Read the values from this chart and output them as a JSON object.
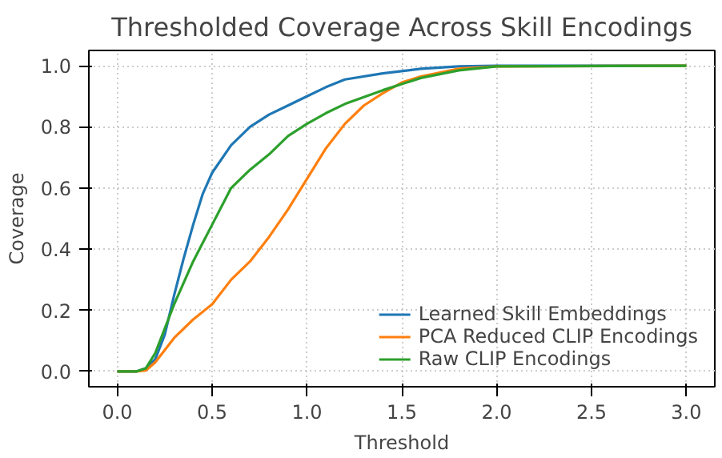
{
  "chart_data": {
    "type": "line",
    "title": "Thresholded Coverage Across Skill Encodings",
    "xlabel": "Threshold",
    "ylabel": "Coverage",
    "xlim": [
      -0.15,
      3.15
    ],
    "ylim": [
      -0.05,
      1.05
    ],
    "xticks": [
      {
        "value": 0,
        "label": "0.0"
      },
      0.5,
      {
        "value": 1,
        "label": "1.0"
      },
      1.5,
      {
        "value": 2,
        "label": "2.0"
      },
      2.5,
      {
        "value": 3,
        "label": "3.0"
      }
    ],
    "yticks": [
      {
        "value": 0,
        "label": "0.0"
      },
      0.2,
      0.4,
      0.6,
      0.8,
      {
        "value": 1,
        "label": "1.0"
      }
    ],
    "grid": true,
    "legend": "bottom right",
    "line_style": "solid",
    "series": [
      {
        "name": "Learned Skill Embeddings",
        "color": "#1f77b4",
        "x": [
          0,
          0.1,
          0.15,
          0.2,
          0.25,
          0.3,
          0.35,
          0.4,
          0.45,
          0.5,
          0.6,
          0.7,
          0.8,
          0.9,
          1.0,
          1.1,
          1.2,
          1.4,
          1.6,
          1.8,
          2.0,
          3.0
        ],
        "values": [
          0,
          0,
          0.01,
          0.04,
          0.12,
          0.25,
          0.37,
          0.48,
          0.58,
          0.65,
          0.74,
          0.8,
          0.84,
          0.87,
          0.9,
          0.93,
          0.955,
          0.975,
          0.99,
          0.998,
          1,
          1
        ]
      },
      {
        "name": "PCA Reduced CLIP Encodings",
        "color": "#ff7f0e",
        "x": [
          0,
          0.1,
          0.15,
          0.2,
          0.25,
          0.3,
          0.4,
          0.5,
          0.6,
          0.7,
          0.8,
          0.9,
          1.0,
          1.1,
          1.2,
          1.3,
          1.4,
          1.5,
          1.6,
          1.8,
          2.0,
          3.0
        ],
        "values": [
          0,
          0,
          0.003,
          0.03,
          0.07,
          0.11,
          0.17,
          0.22,
          0.3,
          0.36,
          0.44,
          0.53,
          0.63,
          0.73,
          0.81,
          0.87,
          0.91,
          0.945,
          0.965,
          0.99,
          0.998,
          1
        ]
      },
      {
        "name": "Raw CLIP Encodings",
        "color": "#2ca02c",
        "x": [
          0,
          0.1,
          0.15,
          0.2,
          0.3,
          0.4,
          0.5,
          0.6,
          0.7,
          0.8,
          0.9,
          1.0,
          1.1,
          1.2,
          1.4,
          1.6,
          1.8,
          2.0,
          3.0
        ],
        "values": [
          0,
          0,
          0.01,
          0.06,
          0.22,
          0.36,
          0.48,
          0.6,
          0.66,
          0.71,
          0.77,
          0.81,
          0.845,
          0.875,
          0.92,
          0.96,
          0.985,
          0.998,
          1
        ]
      }
    ]
  }
}
